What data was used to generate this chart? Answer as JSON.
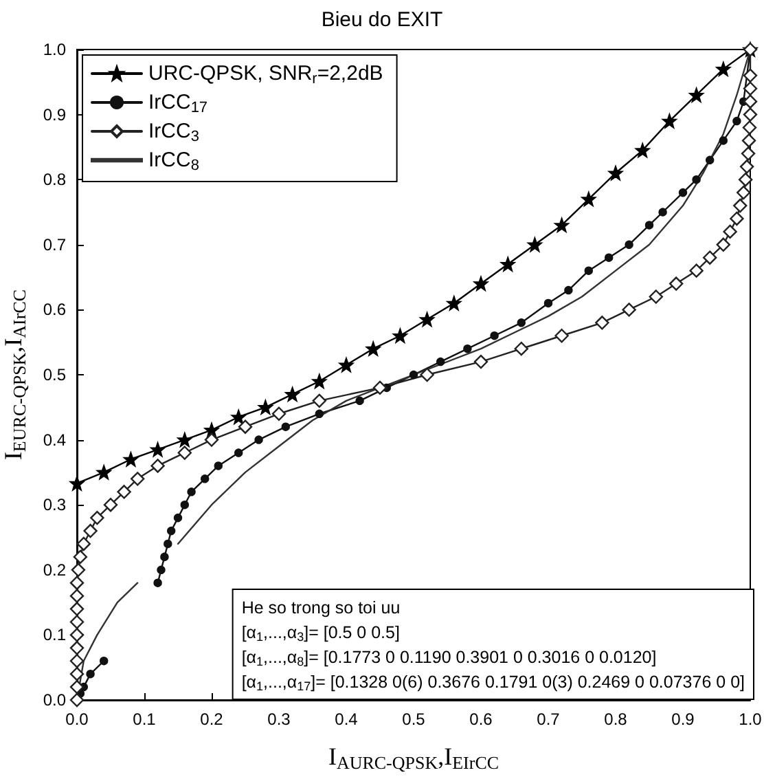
{
  "chart_data": {
    "type": "line",
    "title": "Bieu do EXIT",
    "xlabel": "I$_{A}$$_{URC-QPSK}$,I$_{E}$$_{IrCC}$",
    "ylabel": "I$_{E}$$_{URC-QPSK}$,I$_{A}$$_{IrCC}$",
    "xlim": [
      0,
      1
    ],
    "ylim": [
      0,
      1
    ],
    "xticks": [
      {
        "value": 0,
        "label": "0.0"
      },
      0.1,
      0.2,
      0.3,
      0.4,
      0.5,
      0.6,
      0.7,
      0.8,
      0.9,
      {
        "value": 1,
        "label": "1.0"
      }
    ],
    "yticks": [
      {
        "value": 0,
        "label": "0.0"
      },
      0.1,
      0.2,
      0.3,
      0.4,
      0.5,
      0.6,
      0.7,
      0.8,
      0.9,
      {
        "value": 1,
        "label": "1.0"
      }
    ],
    "grid": false,
    "legend": "top left",
    "line_style": "solid",
    "series": [
      {
        "name": "URC-QPSK, SNR$_{r}$=2,2dB",
        "color": "#000000",
        "marker": "star",
        "x": [
          0,
          0.04,
          0.08,
          0.12,
          0.16,
          0.2,
          0.24,
          0.28,
          0.32,
          0.36,
          0.4,
          0.44,
          0.48,
          0.52,
          0.56,
          0.6,
          0.64,
          0.68,
          0.72,
          0.76,
          0.8,
          0.84,
          0.88,
          0.92,
          0.96,
          1
        ],
        "values": [
          0.333,
          0.35,
          0.37,
          0.385,
          0.4,
          0.415,
          0.435,
          0.45,
          0.47,
          0.49,
          0.515,
          0.54,
          0.56,
          0.585,
          0.61,
          0.64,
          0.67,
          0.7,
          0.73,
          0.77,
          0.81,
          0.845,
          0.89,
          0.93,
          0.97,
          1
        ]
      },
      {
        "name": "IrCC$_{17}$",
        "color": "#111111",
        "marker": "circle",
        "x": [
          0,
          0.005,
          0.01,
          0.02,
          0.04,
          0.07,
          0.12,
          0.125,
          0.13,
          0.135,
          0.14,
          0.15,
          0.16,
          0.17,
          0.19,
          0.21,
          0.24,
          0.27,
          0.31,
          0.36,
          0.42,
          0.46,
          0.5,
          0.54,
          0.58,
          0.62,
          0.66,
          0.7,
          0.73,
          0.76,
          0.79,
          0.82,
          0.85,
          0.87,
          0.9,
          0.92,
          0.94,
          0.96,
          0.98,
          0.99,
          1
        ],
        "values": [
          0,
          0.01,
          0.02,
          0.04,
          0.06,
          null,
          0.18,
          0.2,
          0.22,
          0.24,
          0.26,
          0.28,
          0.3,
          0.32,
          0.34,
          0.36,
          0.38,
          0.4,
          0.42,
          0.44,
          0.46,
          0.48,
          0.5,
          0.52,
          0.54,
          0.56,
          0.58,
          0.61,
          0.63,
          0.66,
          0.68,
          0.7,
          0.73,
          0.75,
          0.78,
          0.8,
          0.83,
          0.86,
          0.89,
          0.92,
          1
        ]
      },
      {
        "name": "IrCC$_{3}$",
        "color": "#222222",
        "marker": "diamond",
        "x": [
          0,
          0,
          0,
          0,
          0,
          0,
          0,
          0,
          0,
          0,
          0.002,
          0.005,
          0.01,
          0.02,
          0.03,
          0.05,
          0.07,
          0.09,
          0.12,
          0.16,
          0.2,
          0.25,
          0.3,
          0.36,
          0.45,
          0.52,
          0.6,
          0.66,
          0.72,
          0.78,
          0.82,
          0.86,
          0.89,
          0.92,
          0.94,
          0.96,
          0.97,
          0.98,
          0.985,
          0.99,
          0.993,
          0.995,
          0.997,
          0.998,
          0.999,
          1,
          1,
          1,
          1,
          1
        ],
        "values": [
          0,
          0.02,
          0.04,
          0.06,
          0.08,
          0.1,
          0.12,
          0.14,
          0.16,
          0.18,
          0.2,
          0.22,
          0.24,
          0.26,
          0.28,
          0.3,
          0.32,
          0.34,
          0.36,
          0.38,
          0.4,
          0.42,
          0.44,
          0.46,
          0.48,
          0.5,
          0.52,
          0.54,
          0.56,
          0.58,
          0.6,
          0.62,
          0.64,
          0.66,
          0.68,
          0.7,
          0.72,
          0.74,
          0.76,
          0.78,
          0.8,
          0.82,
          0.84,
          0.86,
          0.88,
          0.9,
          0.92,
          0.94,
          0.96,
          1
        ]
      },
      {
        "name": "IrCC$_{8}$",
        "color": "#333333",
        "marker": "none",
        "x": [
          0,
          0.01,
          0.03,
          0.06,
          0.09,
          0.1,
          0.15,
          0.2,
          0.25,
          0.3,
          0.35,
          0.4,
          0.45,
          0.5,
          0.6,
          0.7,
          0.75,
          0.8,
          0.85,
          0.9,
          0.93,
          0.96,
          0.98,
          1
        ],
        "values": [
          0,
          0.06,
          0.1,
          0.15,
          0.18,
          null,
          0.24,
          0.3,
          0.35,
          0.39,
          0.43,
          0.46,
          0.48,
          0.5,
          0.54,
          0.59,
          0.62,
          0.66,
          0.7,
          0.76,
          0.81,
          0.87,
          0.93,
          1
        ]
      }
    ],
    "annotations": [
      "He so trong so toi uu",
      "[α$_{1}$,...,α$_{3}$]= [0.5 0 0.5]",
      "[α$_{1}$,...,α$_{8}$]= [0.1773 0 0.1190 0.3901 0 0.3016 0 0.0120]",
      "[α$_{1}$,...,α$_{17}$]= [0.1328 0(6) 0.3676 0.1791 0(3) 0.2469 0 0.07376 0 0]"
    ]
  }
}
